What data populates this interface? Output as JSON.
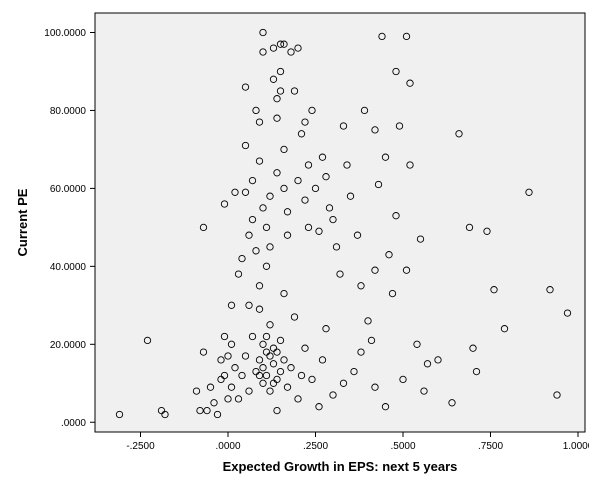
{
  "chart_data": {
    "type": "scatter",
    "title": "",
    "xlabel": "Expected Growth in EPS: next 5 years",
    "ylabel": "Current PE",
    "xlim": [
      -0.38,
      1.02
    ],
    "ylim": [
      -2.5,
      105
    ],
    "x_ticks": [
      {
        "value": -0.25,
        "label": "-.2500"
      },
      {
        "value": 0.0,
        "label": ".0000"
      },
      {
        "value": 0.25,
        "label": ".2500"
      },
      {
        "value": 0.5,
        "label": ".5000"
      },
      {
        "value": 0.75,
        "label": ".7500"
      },
      {
        "value": 1.0,
        "label": "1.0000"
      }
    ],
    "y_ticks": [
      {
        "value": 0,
        "label": ".0000"
      },
      {
        "value": 20,
        "label": "20.0000"
      },
      {
        "value": 40,
        "label": "40.0000"
      },
      {
        "value": 60,
        "label": "60.0000"
      },
      {
        "value": 80,
        "label": "80.0000"
      },
      {
        "value": 100,
        "label": "100.0000"
      }
    ],
    "grid": false,
    "background": "#f0f0f0",
    "marker": "hollow-circle",
    "marker_color": "#000000",
    "points": [
      [
        -0.31,
        2
      ],
      [
        -0.23,
        21
      ],
      [
        -0.19,
        3
      ],
      [
        -0.18,
        2
      ],
      [
        -0.09,
        8
      ],
      [
        -0.08,
        3
      ],
      [
        -0.07,
        18
      ],
      [
        -0.07,
        50
      ],
      [
        -0.06,
        3
      ],
      [
        -0.05,
        9
      ],
      [
        -0.04,
        5
      ],
      [
        -0.03,
        2
      ],
      [
        -0.02,
        16
      ],
      [
        -0.02,
        11
      ],
      [
        -0.01,
        56
      ],
      [
        -0.01,
        22
      ],
      [
        0.0,
        6
      ],
      [
        0.01,
        30
      ],
      [
        0.01,
        20
      ],
      [
        0.02,
        59
      ],
      [
        0.03,
        38
      ],
      [
        0.04,
        42
      ],
      [
        0.05,
        86
      ],
      [
        0.05,
        71
      ],
      [
        0.05,
        59
      ],
      [
        0.06,
        48
      ],
      [
        0.06,
        30
      ],
      [
        0.07,
        62
      ],
      [
        0.07,
        52
      ],
      [
        0.08,
        80
      ],
      [
        0.08,
        44
      ],
      [
        0.09,
        77
      ],
      [
        0.09,
        35
      ],
      [
        0.09,
        67
      ],
      [
        0.1,
        55
      ],
      [
        0.1,
        100
      ],
      [
        0.1,
        95
      ],
      [
        0.11,
        50
      ],
      [
        0.11,
        40
      ],
      [
        0.12,
        58
      ],
      [
        0.12,
        45
      ],
      [
        0.13,
        96
      ],
      [
        0.13,
        88
      ],
      [
        0.14,
        83
      ],
      [
        0.14,
        78
      ],
      [
        0.14,
        64
      ],
      [
        0.15,
        97
      ],
      [
        0.15,
        90
      ],
      [
        0.15,
        85
      ],
      [
        0.16,
        97
      ],
      [
        0.16,
        70
      ],
      [
        0.16,
        60
      ],
      [
        0.17,
        54
      ],
      [
        0.17,
        48
      ],
      [
        0.18,
        95
      ],
      [
        0.19,
        85
      ],
      [
        0.2,
        96
      ],
      [
        0.2,
        62
      ],
      [
        0.21,
        74
      ],
      [
        0.22,
        77
      ],
      [
        0.22,
        57
      ],
      [
        0.23,
        66
      ],
      [
        0.23,
        50
      ],
      [
        0.24,
        80
      ],
      [
        0.25,
        60
      ],
      [
        0.26,
        49
      ],
      [
        0.27,
        68
      ],
      [
        0.28,
        63
      ],
      [
        0.29,
        55
      ],
      [
        0.3,
        52
      ],
      [
        0.31,
        45
      ],
      [
        0.32,
        38
      ],
      [
        0.33,
        76
      ],
      [
        0.34,
        66
      ],
      [
        0.35,
        58
      ],
      [
        0.37,
        48
      ],
      [
        0.38,
        35
      ],
      [
        0.38,
        18
      ],
      [
        0.39,
        80
      ],
      [
        0.4,
        26
      ],
      [
        0.41,
        21
      ],
      [
        0.42,
        39
      ],
      [
        0.42,
        75
      ],
      [
        0.43,
        61
      ],
      [
        0.44,
        99
      ],
      [
        0.45,
        68
      ],
      [
        0.46,
        43
      ],
      [
        0.47,
        33
      ],
      [
        0.48,
        53
      ],
      [
        0.48,
        90
      ],
      [
        0.49,
        76
      ],
      [
        0.5,
        11
      ],
      [
        0.51,
        99
      ],
      [
        0.51,
        39
      ],
      [
        0.52,
        66
      ],
      [
        0.52,
        87
      ],
      [
        0.54,
        20
      ],
      [
        0.55,
        47
      ],
      [
        0.56,
        8
      ],
      [
        0.57,
        15
      ],
      [
        0.6,
        16
      ],
      [
        0.64,
        5
      ],
      [
        0.66,
        74
      ],
      [
        0.69,
        50
      ],
      [
        0.7,
        19
      ],
      [
        0.71,
        13
      ],
      [
        0.74,
        49
      ],
      [
        0.76,
        34
      ],
      [
        0.79,
        24
      ],
      [
        0.86,
        59
      ],
      [
        0.92,
        34
      ],
      [
        0.94,
        7
      ],
      [
        0.97,
        28
      ],
      [
        0.45,
        4
      ],
      [
        0.42,
        9
      ],
      [
        0.36,
        13
      ],
      [
        0.33,
        10
      ],
      [
        0.3,
        7
      ],
      [
        0.28,
        24
      ],
      [
        0.27,
        16
      ],
      [
        0.26,
        4
      ],
      [
        0.24,
        11
      ],
      [
        0.22,
        19
      ],
      [
        0.21,
        12
      ],
      [
        0.2,
        6
      ],
      [
        0.19,
        27
      ],
      [
        0.18,
        14
      ],
      [
        0.17,
        9
      ],
      [
        0.16,
        33
      ],
      [
        0.15,
        21
      ],
      [
        0.14,
        3
      ],
      [
        0.13,
        15
      ],
      [
        0.12,
        25
      ],
      [
        0.11,
        18
      ],
      [
        0.1,
        10
      ],
      [
        0.09,
        29
      ],
      [
        0.08,
        13
      ],
      [
        0.07,
        22
      ],
      [
        0.06,
        8
      ],
      [
        0.05,
        17
      ],
      [
        0.04,
        12
      ],
      [
        0.03,
        6
      ],
      [
        0.02,
        14
      ],
      [
        0.01,
        9
      ],
      [
        0.0,
        17
      ],
      [
        -0.01,
        12
      ],
      [
        0.09,
        16
      ],
      [
        0.1,
        14
      ],
      [
        0.11,
        12
      ],
      [
        0.12,
        17
      ],
      [
        0.13,
        19
      ],
      [
        0.14,
        11
      ],
      [
        0.15,
        13
      ],
      [
        0.16,
        16
      ],
      [
        0.11,
        22
      ],
      [
        0.12,
        8
      ],
      [
        0.13,
        10
      ],
      [
        0.1,
        20
      ],
      [
        0.14,
        18
      ],
      [
        0.09,
        12
      ]
    ]
  }
}
